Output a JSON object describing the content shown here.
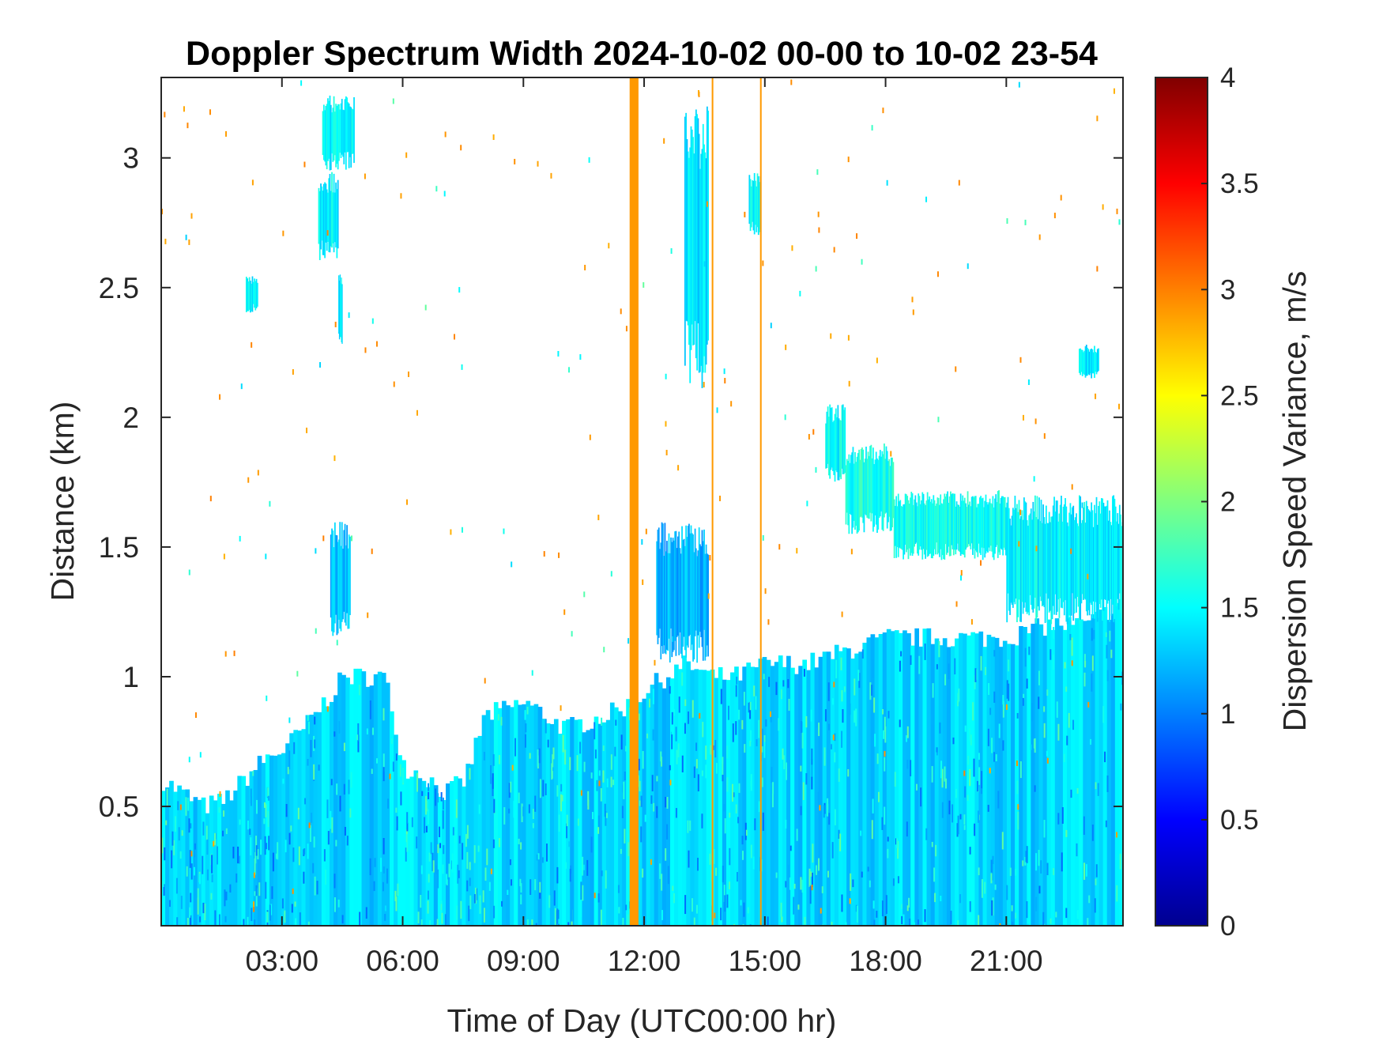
{
  "chart_data": {
    "type": "heatmap",
    "title": "Doppler Spectrum Width 2024-10-02 00-00 to 10-02 23-54",
    "xlabel": "Time of Day (UTC00:00 hr)",
    "ylabel": "Distance (km)",
    "colorbar_label": "Dispersion Speed Variance, m/s",
    "colormap": "jet",
    "xlim": [
      0,
      23.9
    ],
    "ylim": [
      0.04,
      3.31
    ],
    "clim": [
      0,
      4
    ],
    "x_ticks": [
      3,
      6,
      9,
      12,
      15,
      18,
      21
    ],
    "x_tick_labels": [
      "03:00",
      "06:00",
      "09:00",
      "12:00",
      "15:00",
      "18:00",
      "21:00"
    ],
    "y_ticks": [
      0.5,
      1,
      1.5,
      2,
      2.5,
      3
    ],
    "y_tick_labels": [
      "0.5",
      "1",
      "1.5",
      "2",
      "2.5",
      "3"
    ],
    "colorbar_ticks": [
      0,
      0.5,
      1,
      1.5,
      2,
      2.5,
      3,
      3.5,
      4
    ],
    "colorbar_tick_labels": [
      "0",
      "0.5",
      "1",
      "1.5",
      "2",
      "2.5",
      "3",
      "3.5",
      "4"
    ],
    "grid": false,
    "typical_value": 1.35,
    "boundary_layer_top_km": [
      [
        0.0,
        0.6
      ],
      [
        0.5,
        0.55
      ],
      [
        1.0,
        0.5
      ],
      [
        1.5,
        0.52
      ],
      [
        2.0,
        0.6
      ],
      [
        2.5,
        0.68
      ],
      [
        3.0,
        0.72
      ],
      [
        3.5,
        0.8
      ],
      [
        4.0,
        0.9
      ],
      [
        4.5,
        1.0
      ],
      [
        5.5,
        1.0
      ],
      [
        6.0,
        0.65
      ],
      [
        6.5,
        0.62
      ],
      [
        7.0,
        0.55
      ],
      [
        7.5,
        0.6
      ],
      [
        8.0,
        0.85
      ],
      [
        9.0,
        0.9
      ],
      [
        10.0,
        0.8
      ],
      [
        11.0,
        0.85
      ],
      [
        11.7,
        0.9
      ],
      [
        12.0,
        0.95
      ],
      [
        13.0,
        1.05
      ],
      [
        13.6,
        1.0
      ],
      [
        14.2,
        1.0
      ],
      [
        15.0,
        1.05
      ],
      [
        16.0,
        1.05
      ],
      [
        17.0,
        1.1
      ],
      [
        18.0,
        1.15
      ],
      [
        19.0,
        1.15
      ],
      [
        20.0,
        1.15
      ],
      [
        21.0,
        1.15
      ],
      [
        22.0,
        1.2
      ],
      [
        23.0,
        1.2
      ],
      [
        23.9,
        1.3
      ]
    ],
    "cloud_patches": [
      {
        "x": [
          4.2,
          4.7
        ],
        "y": [
          1.15,
          1.6
        ],
        "value": 1.25
      },
      {
        "x": [
          12.3,
          13.6
        ],
        "y": [
          1.05,
          1.6
        ],
        "value": 1.2
      },
      {
        "x": [
          4.0,
          4.8
        ],
        "y": [
          2.95,
          3.25
        ],
        "value": 1.45
      },
      {
        "x": [
          3.9,
          4.4
        ],
        "y": [
          2.6,
          2.95
        ],
        "value": 1.45
      },
      {
        "x": [
          4.4,
          4.5
        ],
        "y": [
          2.25,
          2.6
        ],
        "value": 1.4
      },
      {
        "x": [
          2.1,
          2.4
        ],
        "y": [
          2.4,
          2.55
        ],
        "value": 1.45
      },
      {
        "x": [
          13.0,
          13.6
        ],
        "y": [
          2.1,
          3.2
        ],
        "value": 1.4
      },
      {
        "x": [
          14.6,
          14.9
        ],
        "y": [
          2.7,
          2.95
        ],
        "value": 1.5
      },
      {
        "x": [
          16.5,
          17.0
        ],
        "y": [
          1.75,
          2.05
        ],
        "value": 1.5
      },
      {
        "x": [
          17.0,
          18.2
        ],
        "y": [
          1.55,
          1.9
        ],
        "value": 1.6
      },
      {
        "x": [
          18.2,
          21.0
        ],
        "y": [
          1.45,
          1.72
        ],
        "value": 1.55
      },
      {
        "x": [
          21.0,
          23.9
        ],
        "y": [
          1.2,
          1.7
        ],
        "value": 1.45
      },
      {
        "x": [
          22.8,
          23.3
        ],
        "y": [
          2.15,
          2.28
        ],
        "value": 1.4
      }
    ],
    "vertical_streaks": [
      {
        "x": 11.75,
        "width_hr": 0.22,
        "value": 2.9
      },
      {
        "x": 13.7,
        "width_hr": 0.04,
        "value": 2.9
      },
      {
        "x": 14.9,
        "width_hr": 0.04,
        "value": 2.9
      }
    ]
  }
}
